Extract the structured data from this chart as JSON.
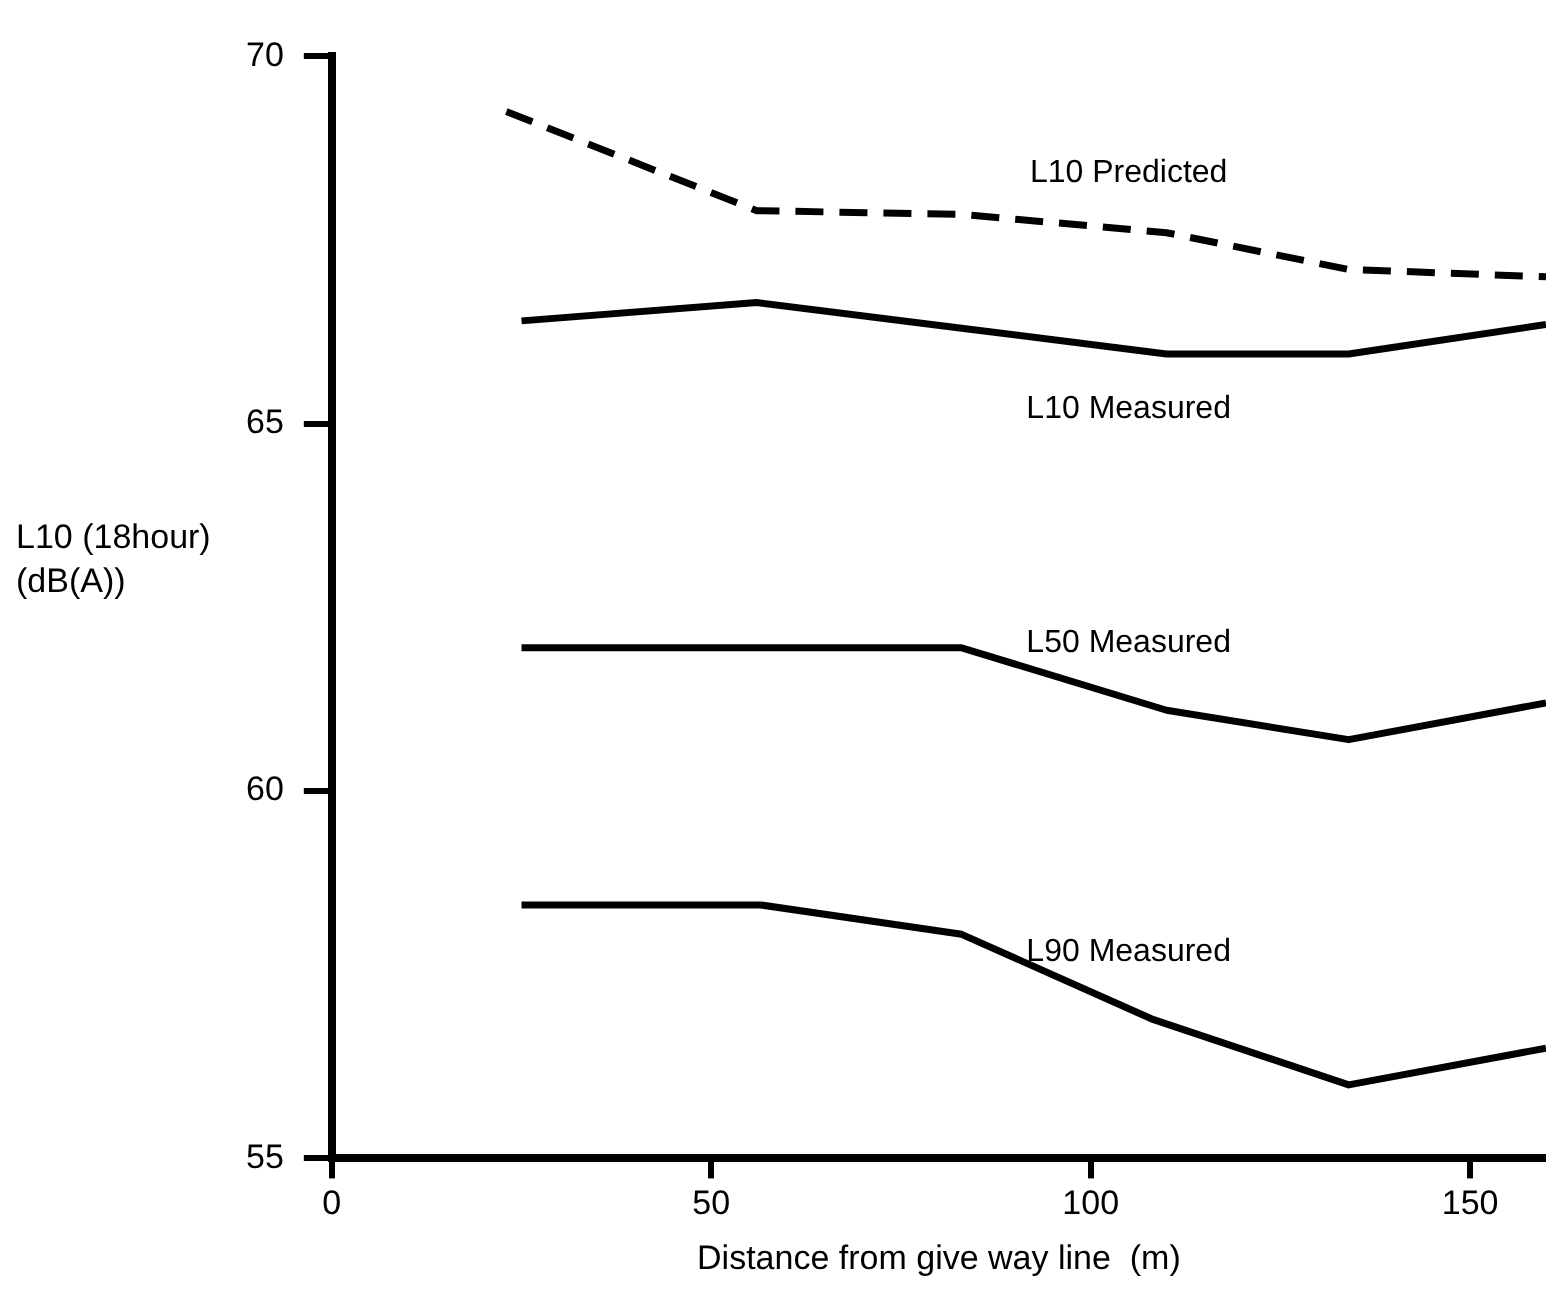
{
  "chart_data": {
    "type": "line",
    "xlabel": "Distance from give way line  (m)",
    "ylabel": "L10 (18hour)\n(dB(A))",
    "xlim": [
      0,
      160
    ],
    "xticks": [
      0,
      50,
      100,
      150
    ],
    "ylim": [
      55,
      70
    ],
    "yticks": [
      55,
      60,
      65,
      70
    ],
    "grid": false,
    "legend": false,
    "marker": "none",
    "series": [
      {
        "name": "L10 Predicted",
        "color": "#000000",
        "line_style": "dashed",
        "x": [
          23,
          56,
          83,
          110,
          134,
          160
        ],
        "values": [
          69.25,
          67.9,
          67.85,
          67.6,
          67.1,
          67.0
        ]
      },
      {
        "name": "L10 Measured",
        "color": "#000000",
        "line_style": "solid",
        "x": [
          25,
          56,
          83,
          110,
          134,
          160
        ],
        "values": [
          66.4,
          66.65,
          66.3,
          65.95,
          65.95,
          66.35
        ]
      },
      {
        "name": "L50 Measured",
        "color": "#000000",
        "line_style": "solid",
        "x": [
          25,
          56,
          83,
          110,
          134,
          160
        ],
        "values": [
          61.95,
          61.95,
          61.95,
          61.1,
          60.7,
          61.2
        ]
      },
      {
        "name": "L90 Measured",
        "color": "#000000",
        "line_style": "solid",
        "x": [
          25,
          56.5,
          83,
          108,
          134,
          160
        ],
        "values": [
          58.45,
          58.45,
          58.05,
          56.9,
          56.0,
          56.5
        ]
      }
    ]
  }
}
